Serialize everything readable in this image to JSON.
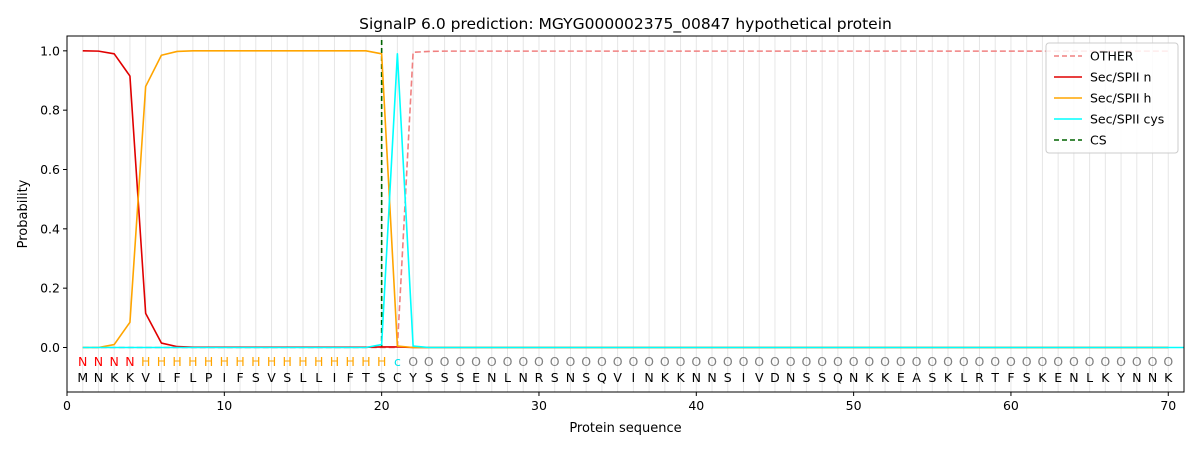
{
  "chart_data": {
    "type": "line",
    "title": "SignalP 6.0 prediction: MGYG000002375_00847 hypothetical protein",
    "xlabel": "Protein sequence",
    "ylabel": "Probability",
    "xlim": [
      0,
      71
    ],
    "ylim": [
      -0.15,
      1.05
    ],
    "x_ticks": [
      0,
      10,
      20,
      30,
      40,
      50,
      60,
      70
    ],
    "y_ticks": [
      0.0,
      0.2,
      0.4,
      0.6,
      0.8,
      1.0
    ],
    "x_tick_labels": [
      "0",
      "10",
      "20",
      "30",
      "40",
      "50",
      "60",
      "70"
    ],
    "y_tick_labels": [
      "0.0",
      "0.2",
      "0.4",
      "0.6",
      "0.8",
      "1.0"
    ],
    "grid": "vertical lines at each residue",
    "legend_position": "top-right",
    "sequence": [
      "M",
      "N",
      "K",
      "K",
      "V",
      "L",
      "F",
      "L",
      "P",
      "I",
      "F",
      "S",
      "V",
      "S",
      "L",
      "L",
      "I",
      "F",
      "T",
      "S",
      "C",
      "Y",
      "S",
      "S",
      "S",
      "E",
      "N",
      "L",
      "N",
      "R",
      "S",
      "N",
      "S",
      "Q",
      "V",
      "I",
      "N",
      "K",
      "K",
      "N",
      "N",
      "S",
      "I",
      "V",
      "D",
      "N",
      "S",
      "S",
      "Q",
      "N",
      "K",
      "K",
      "E",
      "A",
      "S",
      "K",
      "L",
      "R",
      "T",
      "F",
      "S",
      "K",
      "E",
      "N",
      "L",
      "K",
      "Y",
      "N",
      "N",
      "K"
    ],
    "region_labels": [
      "N",
      "N",
      "N",
      "N",
      "H",
      "H",
      "H",
      "H",
      "H",
      "H",
      "H",
      "H",
      "H",
      "H",
      "H",
      "H",
      "H",
      "H",
      "H",
      "H",
      "c",
      "O",
      "O",
      "O",
      "O",
      "O",
      "O",
      "O",
      "O",
      "O",
      "O",
      "O",
      "O",
      "O",
      "O",
      "O",
      "O",
      "O",
      "O",
      "O",
      "O",
      "O",
      "O",
      "O",
      "O",
      "O",
      "O",
      "O",
      "O",
      "O",
      "O",
      "O",
      "O",
      "O",
      "O",
      "O",
      "O",
      "O",
      "O",
      "O",
      "O",
      "O",
      "O",
      "O",
      "O",
      "O",
      "O",
      "O",
      "O",
      "O"
    ],
    "region_colors": {
      "N": "#ff0000",
      "H": "#ffa500",
      "c": "#00e5ee",
      "O": "#808080"
    },
    "cleavage_site": 20,
    "series": [
      {
        "name": "OTHER",
        "color": "#f08080",
        "dash": "dashed",
        "values": [
          0,
          0,
          0,
          0,
          0,
          0,
          0,
          0,
          0,
          0,
          0,
          0,
          0,
          0,
          0,
          0,
          0,
          0,
          0,
          0,
          0,
          0.995,
          0.998,
          0.999,
          0.999,
          0.999,
          0.999,
          0.999,
          0.999,
          0.999,
          0.999,
          0.999,
          0.999,
          0.999,
          0.999,
          0.999,
          0.999,
          0.999,
          0.999,
          0.999,
          0.999,
          0.999,
          0.999,
          0.999,
          0.999,
          0.999,
          0.999,
          0.999,
          0.999,
          0.999,
          0.999,
          0.999,
          0.999,
          0.999,
          0.999,
          0.999,
          0.999,
          0.999,
          0.999,
          0.999,
          0.999,
          0.999,
          0.999,
          0.999,
          0.999,
          0.999,
          0.999,
          0.999,
          0.999,
          0.999
        ]
      },
      {
        "name": "Sec/SPII n",
        "color": "#e00000",
        "dash": "solid",
        "values": [
          1.0,
          0.999,
          0.99,
          0.915,
          0.115,
          0.015,
          0.003,
          0.001,
          0.001,
          0.001,
          0.001,
          0.001,
          0.001,
          0.001,
          0.001,
          0.001,
          0.001,
          0.001,
          0.001,
          0.002,
          0.002,
          0,
          0,
          0,
          0,
          0,
          0,
          0,
          0,
          0,
          0,
          0,
          0,
          0,
          0,
          0,
          0,
          0,
          0,
          0,
          0,
          0,
          0,
          0,
          0,
          0,
          0,
          0,
          0,
          0,
          0,
          0,
          0,
          0,
          0,
          0,
          0,
          0,
          0,
          0,
          0,
          0,
          0,
          0,
          0,
          0,
          0,
          0,
          0,
          0
        ]
      },
      {
        "name": "Sec/SPII h",
        "color": "#ffa500",
        "dash": "solid",
        "values": [
          0,
          0,
          0.01,
          0.085,
          0.88,
          0.985,
          0.998,
          1.0,
          1.0,
          1.0,
          1.0,
          1.0,
          1.0,
          1.0,
          1.0,
          1.0,
          1.0,
          1.0,
          1.0,
          0.99,
          0.005,
          0,
          0,
          0,
          0,
          0,
          0,
          0,
          0,
          0,
          0,
          0,
          0,
          0,
          0,
          0,
          0,
          0,
          0,
          0,
          0,
          0,
          0,
          0,
          0,
          0,
          0,
          0,
          0,
          0,
          0,
          0,
          0,
          0,
          0,
          0,
          0,
          0,
          0,
          0,
          0,
          0,
          0,
          0,
          0,
          0,
          0,
          0,
          0,
          0
        ]
      },
      {
        "name": "Sec/SPII cys",
        "color": "#00ffff",
        "dash": "solid",
        "values": [
          0,
          0,
          0,
          0,
          0,
          0,
          0,
          0,
          0,
          0,
          0,
          0,
          0,
          0,
          0,
          0,
          0,
          0,
          0,
          0.01,
          0.99,
          0.005,
          0,
          0,
          0,
          0,
          0,
          0,
          0,
          0,
          0,
          0,
          0,
          0,
          0,
          0,
          0,
          0,
          0,
          0,
          0,
          0,
          0,
          0,
          0,
          0,
          0,
          0,
          0,
          0,
          0,
          0,
          0,
          0,
          0,
          0,
          0,
          0,
          0,
          0,
          0,
          0,
          0,
          0,
          0,
          0,
          0,
          0,
          0,
          0,
          0
        ]
      },
      {
        "name": "CS",
        "color": "#006400",
        "dash": "dashed",
        "values": []
      }
    ]
  }
}
